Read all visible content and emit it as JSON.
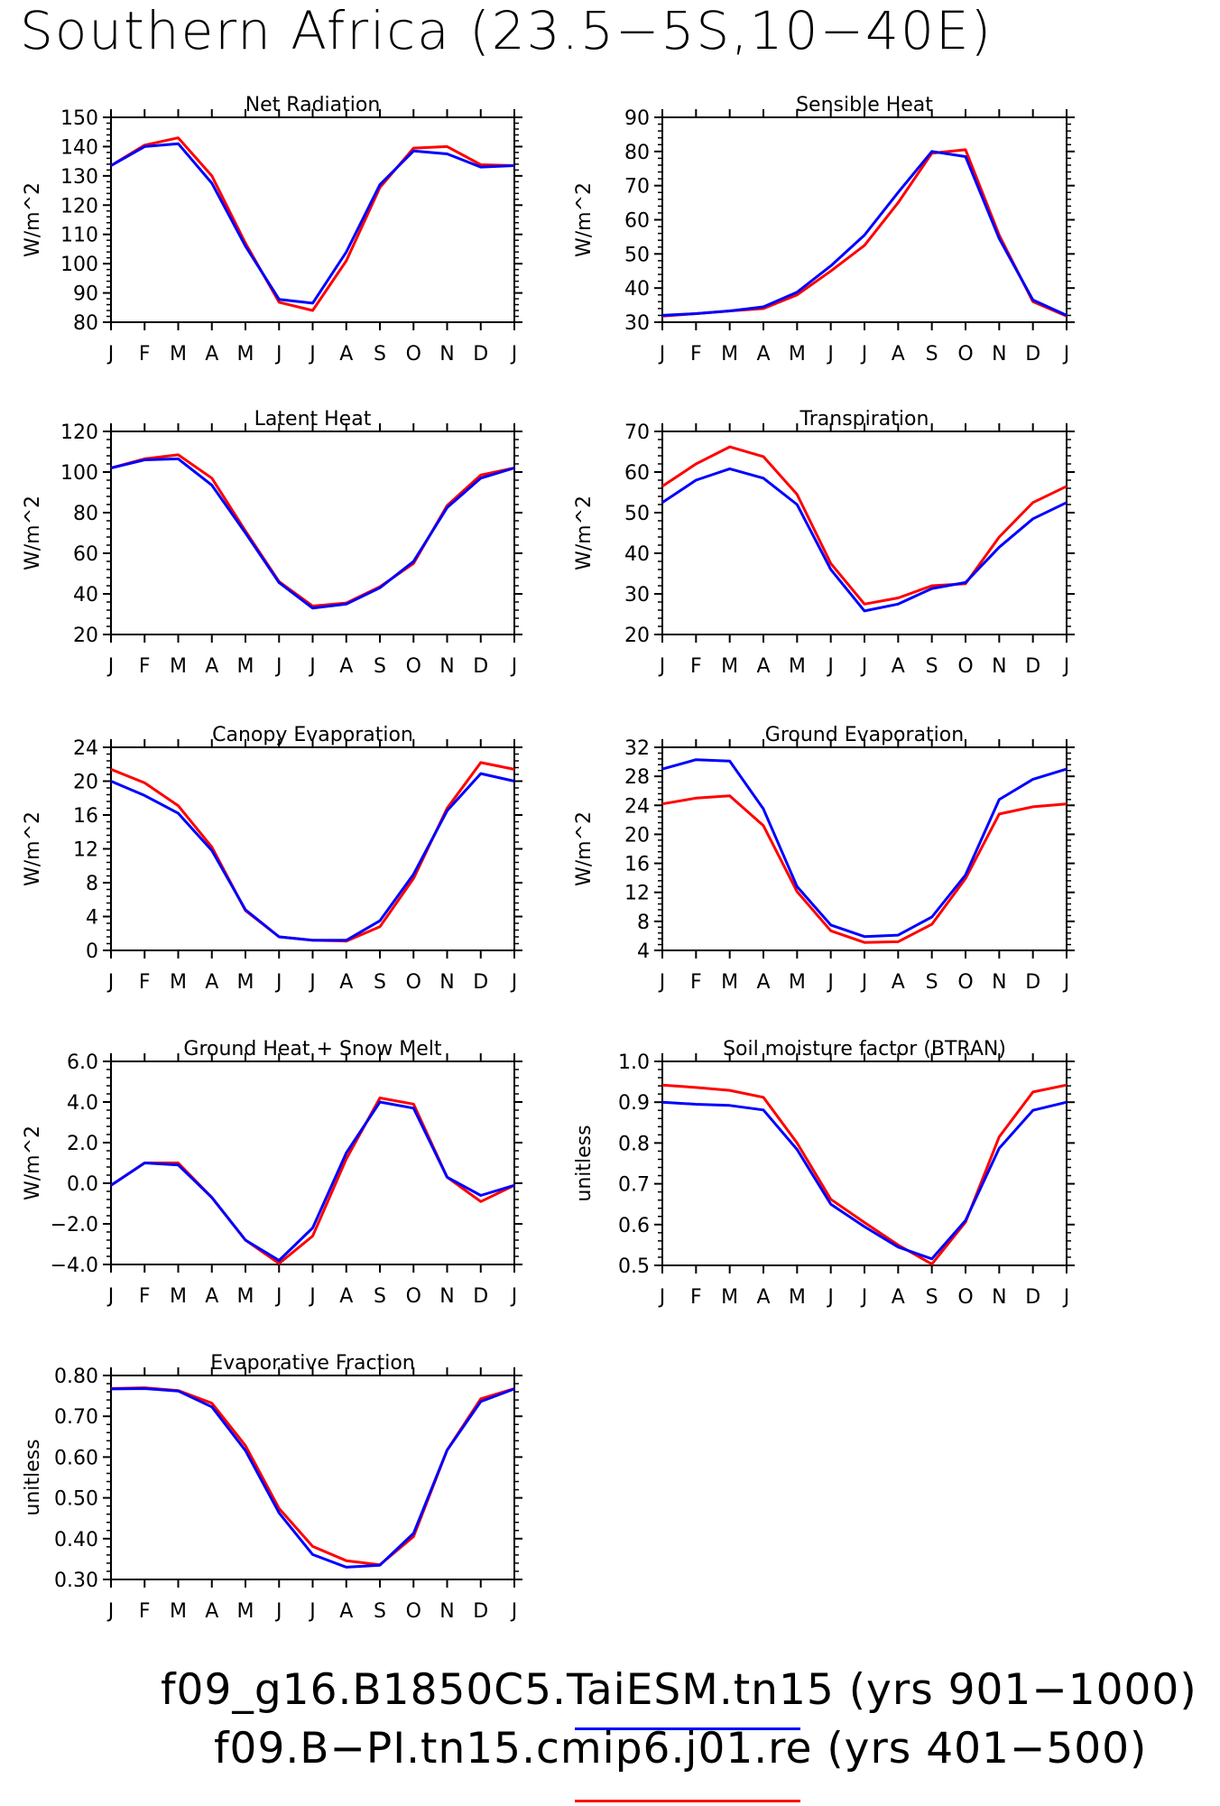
{
  "page": {
    "title": "Southern Africa (23.5−5S,10−40E)"
  },
  "legend": [
    {
      "label": "f09_g16.B1850C5.TaiESM.tn15 (yrs 901−1000)",
      "color": "#0000ff"
    },
    {
      "label": "f09.B−PI.tn15.cmip6.j01.re (yrs 401−500)",
      "color": "#ff0000"
    }
  ],
  "chart_data": [
    {
      "type": "line",
      "title": "Net Radiation",
      "ylabel": "W/m^2",
      "x": [
        "J",
        "F",
        "M",
        "A",
        "M",
        "J",
        "J",
        "A",
        "S",
        "O",
        "N",
        "D",
        "J"
      ],
      "ylim": [
        80,
        150
      ],
      "yticks": [
        "80",
        "90",
        "100",
        "110",
        "120",
        "130",
        "140",
        "150"
      ],
      "series": [
        {
          "color": "#0000ff",
          "values": [
            133.5,
            140,
            141,
            127.5,
            106,
            87.8,
            86.5,
            104,
            127,
            138.5,
            137.5,
            133,
            133.5
          ]
        },
        {
          "color": "#ff0000",
          "values": [
            133.5,
            140.5,
            143,
            130,
            107,
            86.8,
            84,
            101,
            126,
            139.5,
            140,
            133.8,
            133.5
          ]
        }
      ]
    },
    {
      "type": "line",
      "title": "Sensible Heat",
      "ylabel": "W/m^2",
      "x": [
        "J",
        "F",
        "M",
        "A",
        "M",
        "J",
        "J",
        "A",
        "S",
        "O",
        "N",
        "D",
        "J"
      ],
      "ylim": [
        30,
        90
      ],
      "yticks": [
        "30",
        "40",
        "50",
        "60",
        "70",
        "80",
        "90"
      ],
      "series": [
        {
          "color": "#0000ff",
          "values": [
            32,
            32.5,
            33.3,
            34.5,
            38.8,
            46.5,
            55.5,
            68,
            80,
            78.5,
            54.5,
            36.5,
            32
          ]
        },
        {
          "color": "#ff0000",
          "values": [
            31.8,
            32.5,
            33.3,
            34,
            38,
            45,
            52.5,
            65,
            79.5,
            80.5,
            55.5,
            36,
            31.8
          ]
        }
      ]
    },
    {
      "type": "line",
      "title": "Latent Heat",
      "ylabel": "W/m^2",
      "x": [
        "J",
        "F",
        "M",
        "A",
        "M",
        "J",
        "J",
        "A",
        "S",
        "O",
        "N",
        "D",
        "J"
      ],
      "ylim": [
        20,
        120
      ],
      "yticks": [
        "20",
        "40",
        "60",
        "80",
        "100",
        "120"
      ],
      "series": [
        {
          "color": "#0000ff",
          "values": [
            102,
            106,
            106.5,
            93.5,
            70,
            45.5,
            33,
            35,
            43,
            56,
            82.5,
            97,
            102
          ]
        },
        {
          "color": "#ff0000",
          "values": [
            102,
            106.5,
            108.5,
            97,
            71,
            46,
            34,
            35.5,
            43.5,
            55,
            83.5,
            98.5,
            102
          ]
        }
      ]
    },
    {
      "type": "line",
      "title": "Transpiration",
      "ylabel": "W/m^2",
      "x": [
        "J",
        "F",
        "M",
        "A",
        "M",
        "J",
        "J",
        "A",
        "S",
        "O",
        "N",
        "D",
        "J"
      ],
      "ylim": [
        20,
        70
      ],
      "yticks": [
        "20",
        "30",
        "40",
        "50",
        "60",
        "70"
      ],
      "series": [
        {
          "color": "#0000ff",
          "values": [
            52.5,
            58,
            60.8,
            58.5,
            52,
            36,
            25.8,
            27.5,
            31.3,
            32.8,
            41.5,
            48.5,
            52.5
          ]
        },
        {
          "color": "#ff0000",
          "values": [
            56.5,
            62,
            66.2,
            63.8,
            54.5,
            37.5,
            27.5,
            29,
            32,
            32.5,
            44,
            52.5,
            56.5
          ]
        }
      ]
    },
    {
      "type": "line",
      "title": "Canopy Evaporation",
      "ylabel": "W/m^2",
      "x": [
        "J",
        "F",
        "M",
        "A",
        "M",
        "J",
        "J",
        "A",
        "S",
        "O",
        "N",
        "D",
        "J"
      ],
      "ylim": [
        0,
        24
      ],
      "yticks": [
        "0",
        "4",
        "8",
        "12",
        "16",
        "20",
        "24"
      ],
      "series": [
        {
          "color": "#0000ff",
          "values": [
            20,
            18.3,
            16.2,
            11.8,
            4.8,
            1.6,
            1.2,
            1.2,
            3.5,
            9,
            16.5,
            20.9,
            20
          ]
        },
        {
          "color": "#ff0000",
          "values": [
            21.4,
            19.8,
            17.1,
            12.2,
            4.7,
            1.6,
            1.2,
            1.1,
            2.8,
            8.5,
            16.8,
            22.2,
            21.4
          ]
        }
      ]
    },
    {
      "type": "line",
      "title": "Ground Evaporation",
      "ylabel": "W/m^2",
      "x": [
        "J",
        "F",
        "M",
        "A",
        "M",
        "J",
        "J",
        "A",
        "S",
        "O",
        "N",
        "D",
        "J"
      ],
      "ylim": [
        4,
        32
      ],
      "yticks": [
        "4",
        "8",
        "12",
        "16",
        "20",
        "24",
        "28",
        "32"
      ],
      "series": [
        {
          "color": "#0000ff",
          "values": [
            29,
            30.3,
            30.1,
            23.5,
            12.8,
            7.5,
            5.9,
            6.1,
            8.6,
            14.4,
            24.8,
            27.6,
            29
          ]
        },
        {
          "color": "#ff0000",
          "values": [
            24.2,
            25,
            25.3,
            21.2,
            12.1,
            6.7,
            5.1,
            5.2,
            7.6,
            13.9,
            22.8,
            23.8,
            24.2
          ]
        }
      ]
    },
    {
      "type": "line",
      "title": "Ground Heat + Snow Melt",
      "ylabel": "W/m^2",
      "x": [
        "J",
        "F",
        "M",
        "A",
        "M",
        "J",
        "J",
        "A",
        "S",
        "O",
        "N",
        "D",
        "J"
      ],
      "ylim": [
        -4,
        6
      ],
      "yticks": [
        "−4.0",
        "−2.0",
        "0.0",
        "2.0",
        "4.0",
        "6.0"
      ],
      "series": [
        {
          "color": "#0000ff",
          "values": [
            -0.1,
            1.0,
            0.9,
            -0.7,
            -2.8,
            -3.8,
            -2.2,
            1.5,
            4.0,
            3.7,
            0.3,
            -0.6,
            -0.1
          ]
        },
        {
          "color": "#ff0000",
          "values": [
            -0.1,
            1.0,
            1.0,
            -0.7,
            -2.8,
            -3.95,
            -2.6,
            1.2,
            4.2,
            3.9,
            0.3,
            -0.9,
            -0.1
          ]
        }
      ]
    },
    {
      "type": "line",
      "title": "Soil moisture factor (BTRAN)",
      "ylabel": "unitless",
      "x": [
        "J",
        "F",
        "M",
        "A",
        "M",
        "J",
        "J",
        "A",
        "S",
        "O",
        "N",
        "D",
        "J"
      ],
      "ylim": [
        0.5,
        1.0
      ],
      "yticks": [
        "0.5",
        "0.6",
        "0.7",
        "0.8",
        "0.9",
        "1.0"
      ],
      "series": [
        {
          "color": "#0000ff",
          "values": [
            0.9,
            0.895,
            0.892,
            0.881,
            0.784,
            0.65,
            0.595,
            0.545,
            0.516,
            0.61,
            0.787,
            0.88,
            0.9
          ]
        },
        {
          "color": "#ff0000",
          "values": [
            0.942,
            0.936,
            0.929,
            0.912,
            0.8,
            0.662,
            0.605,
            0.55,
            0.503,
            0.606,
            0.815,
            0.925,
            0.942
          ]
        }
      ]
    },
    {
      "type": "line",
      "title": "Evaporative Fraction",
      "ylabel": "unitless",
      "x": [
        "J",
        "F",
        "M",
        "A",
        "M",
        "J",
        "J",
        "A",
        "S",
        "O",
        "N",
        "D",
        "J"
      ],
      "ylim": [
        0.3,
        0.8
      ],
      "yticks": [
        "0.30",
        "0.40",
        "0.50",
        "0.60",
        "0.70",
        "0.80"
      ],
      "series": [
        {
          "color": "#0000ff",
          "values": [
            0.767,
            0.768,
            0.762,
            0.723,
            0.616,
            0.463,
            0.361,
            0.33,
            0.335,
            0.413,
            0.617,
            0.736,
            0.767
          ]
        },
        {
          "color": "#ff0000",
          "values": [
            0.768,
            0.77,
            0.763,
            0.732,
            0.628,
            0.474,
            0.381,
            0.346,
            0.336,
            0.405,
            0.617,
            0.743,
            0.768
          ]
        }
      ]
    }
  ]
}
